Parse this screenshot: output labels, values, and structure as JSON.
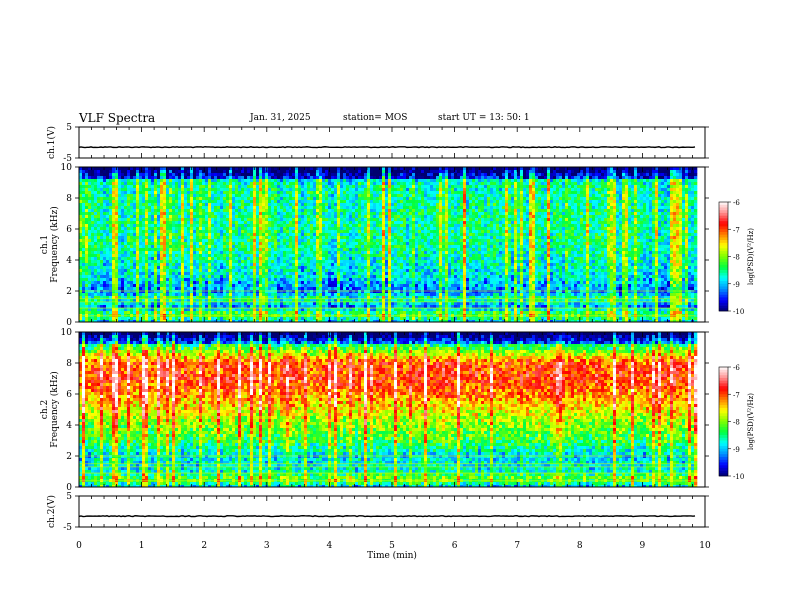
{
  "header": {
    "title": "VLF Spectra",
    "date": "Jan. 31, 2025",
    "station": "station= MOS",
    "start": "start  UT =  13: 50: 1"
  },
  "chart_data": [
    {
      "type": "line",
      "panel": "ch1-waveform",
      "ylabel": "ch.1(V)",
      "ylim": [
        -5,
        5
      ],
      "yticks": [
        "5",
        "-5"
      ],
      "xlim": [
        0,
        10
      ],
      "series": [
        {
          "values_x": [
            0,
            9.85
          ],
          "values_y": [
            -1.5,
            -1.5
          ]
        }
      ]
    },
    {
      "type": "heatmap",
      "panel": "ch1-spectrogram",
      "ylabel": "ch.1\nFrequency (kHz)",
      "ylim": [
        0,
        10
      ],
      "yticks": [
        "0",
        "2",
        "4",
        "6",
        "8",
        "10"
      ],
      "xlim": [
        0,
        10
      ],
      "data_end_min": 9.85,
      "colorbar": {
        "label": "log(PSD)(V²/Hz)",
        "min": -10,
        "max": -6,
        "ticks": [
          "-6",
          "-7",
          "-8",
          "-9",
          "-10"
        ]
      },
      "level_profile": {
        "freq_khz": [
          0,
          0.5,
          1,
          1.5,
          2,
          3,
          5,
          7,
          9,
          10
        ],
        "log_psd": [
          -9.0,
          -8.2,
          -9.2,
          -8.6,
          -9.3,
          -8.9,
          -8.6,
          -8.6,
          -8.7,
          -9.8
        ]
      }
    },
    {
      "type": "heatmap",
      "panel": "ch2-spectrogram",
      "ylabel": "ch.2\nFrequency (kHz)",
      "ylim": [
        0,
        10
      ],
      "yticks": [
        "0",
        "2",
        "4",
        "6",
        "8",
        "10"
      ],
      "xlim": [
        0,
        10
      ],
      "data_end_min": 9.85,
      "colorbar": {
        "label": "log(PSD)(V²/Hz)",
        "min": -10,
        "max": -6,
        "ticks": [
          "-6",
          "-7",
          "-8",
          "-9",
          "-10"
        ]
      },
      "level_profile": {
        "freq_khz": [
          0,
          0.5,
          1,
          2,
          3,
          4,
          5,
          6,
          7,
          8,
          9,
          10
        ],
        "log_psd": [
          -9.0,
          -8.0,
          -8.7,
          -8.9,
          -8.3,
          -8.0,
          -7.6,
          -7.2,
          -6.9,
          -7.0,
          -8.3,
          -9.8
        ]
      }
    },
    {
      "type": "line",
      "panel": "ch2-waveform",
      "ylabel": "ch.2(V)",
      "ylim": [
        -5,
        5
      ],
      "yticks": [
        "5",
        "-5"
      ],
      "xlim": [
        0,
        10
      ],
      "xlabel": "Time  (min)",
      "xticks": [
        "0",
        "1",
        "2",
        "3",
        "4",
        "5",
        "6",
        "7",
        "8",
        "9",
        "10"
      ],
      "series": [
        {
          "values_x": [
            0,
            9.85
          ],
          "values_y": [
            -1.5,
            -1.5
          ]
        }
      ]
    }
  ],
  "colors": {
    "colormap": [
      "#000070",
      "#0000ff",
      "#0090ff",
      "#00ffff",
      "#00ff40",
      "#80ff00",
      "#ffff00",
      "#ff8000",
      "#ff0000",
      "#ff9090",
      "#ffffff"
    ],
    "axis": "#000000"
  }
}
